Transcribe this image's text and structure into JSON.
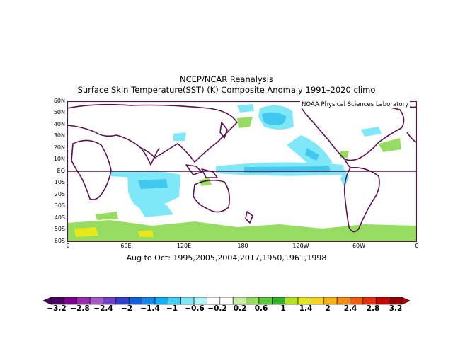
{
  "title": {
    "line1": "NCEP/NCAR Reanalysis",
    "line2": "Surface Skin Temperature(SST) (K) Composite Anomaly 1991–2020 climo"
  },
  "credit": "NOAA Physical Sciences Laboratory",
  "period_label": "Aug to Oct: 1995,2005,2004,2017,1950,1961,1998",
  "lat_labels": [
    "60N",
    "50N",
    "40N",
    "30N",
    "20N",
    "10N",
    "EQ",
    "10S",
    "20S",
    "30S",
    "40S",
    "50S",
    "60S"
  ],
  "lon_labels": [
    "0",
    "60E",
    "120E",
    "180",
    "120W",
    "60W",
    "0"
  ],
  "colorbar": {
    "labels": [
      "−3.2",
      "−2.8",
      "−2.4",
      "−2",
      "−1.4",
      "−1",
      "−0.6",
      "−0.2",
      "0.2",
      "0.6",
      "1",
      "1.4",
      "2",
      "2.4",
      "2.8",
      "3.2"
    ],
    "colors": [
      "#4a0060",
      "#7b0090",
      "#9a2cb0",
      "#a858c8",
      "#7040c8",
      "#3040d0",
      "#1060e0",
      "#1088f0",
      "#10b0f8",
      "#40d0f8",
      "#7ee8f8",
      "#b0f4fc",
      "#ffffff",
      "#ffffff",
      "#c8f0a0",
      "#96dc60",
      "#5cc83c",
      "#30b428",
      "#b4e41c",
      "#e6e81c",
      "#f8d41c",
      "#f8b414",
      "#f88c10",
      "#f05c0c",
      "#e63008",
      "#c80000",
      "#960000"
    ]
  },
  "colors": {
    "land_outline": "#5a1050",
    "equator_line": "#4a1040",
    "cool_anomaly": "#7ee8f8",
    "strong_cool": "#40c8f0",
    "warm_anomaly": "#96dc60"
  }
}
